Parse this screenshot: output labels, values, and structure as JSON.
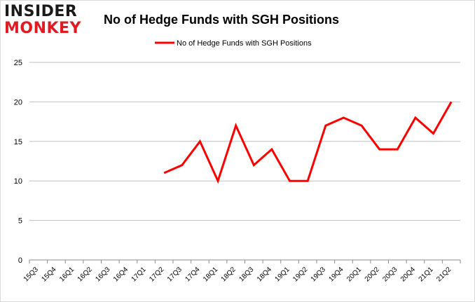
{
  "logo": {
    "line1": "INSIDER",
    "line2": "MONKEY"
  },
  "chart_data": {
    "type": "line",
    "title": "No of Hedge Funds with SGH Positions",
    "x": [
      "15Q3",
      "15Q4",
      "16Q1",
      "16Q2",
      "16Q3",
      "16Q4",
      "17Q1",
      "17Q2",
      "17Q3",
      "17Q4",
      "18Q1",
      "18Q2",
      "18Q3",
      "18Q4",
      "19Q1",
      "19Q2",
      "19Q3",
      "19Q4",
      "20Q1",
      "20Q2",
      "20Q3",
      "20Q4",
      "21Q1",
      "21Q2"
    ],
    "series": [
      {
        "name": "No of Hedge Funds with SGH Positions",
        "color": "#ff0000",
        "values": [
          null,
          null,
          null,
          null,
          null,
          null,
          null,
          11,
          12,
          15,
          10,
          17,
          12,
          14,
          10,
          10,
          17,
          18,
          17,
          14,
          14,
          18,
          16,
          20
        ]
      }
    ],
    "yticks": [
      0,
      5,
      10,
      15,
      20,
      25
    ],
    "ylim": [
      0,
      25
    ],
    "grid": "horizontal",
    "legend": "top-center"
  }
}
